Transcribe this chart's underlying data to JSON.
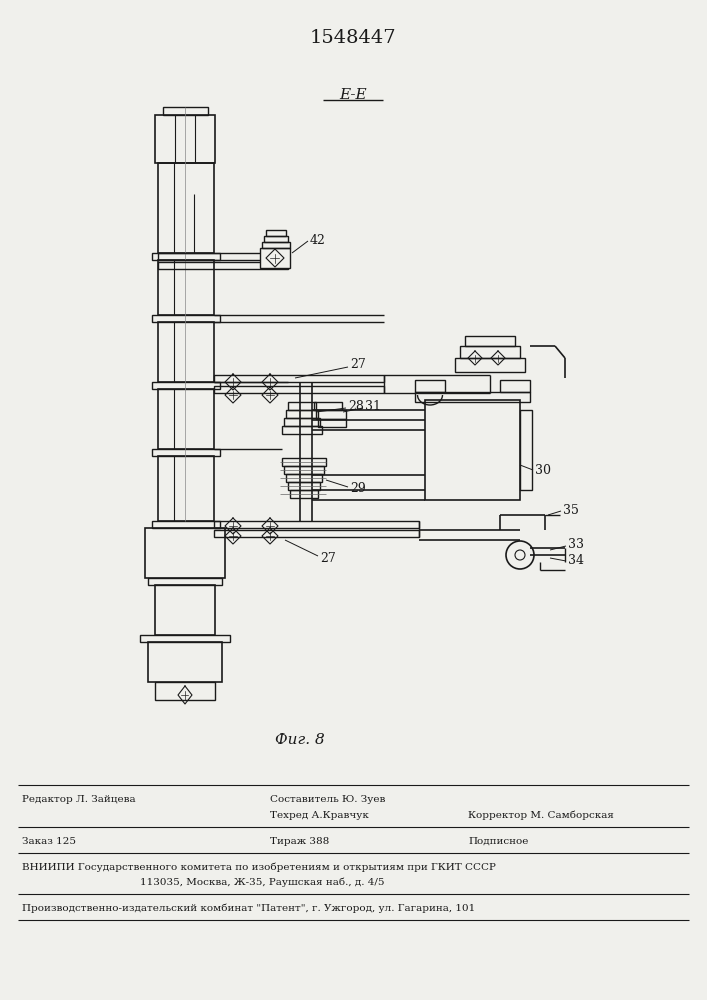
{
  "title_number": "1548447",
  "section_label": "E-E",
  "fig_label": "Фиг. 8",
  "background_color": "#f0f0ec",
  "line_color": "#1a1a1a",
  "footer": {
    "editor": "Редактор Л. Зайцева",
    "author": "Составитель Ю. Зуев",
    "techred": "Техред А.Кравчук",
    "corrector": "Корректор М. Самборская",
    "order": "Заказ 125",
    "copies": "Тираж 388",
    "subscr": "Подписное",
    "vniip1": "ВНИИПИ Государственного комитета по изобретениям и открытиям при ГКИТ СССР",
    "vniip2": "113035, Москва, Ж-35, Раушская наб., д. 4/5",
    "patent": "Производственно-издательский комбинат \"Патент\", г. Ужгород, ул. Гагарина, 101"
  }
}
